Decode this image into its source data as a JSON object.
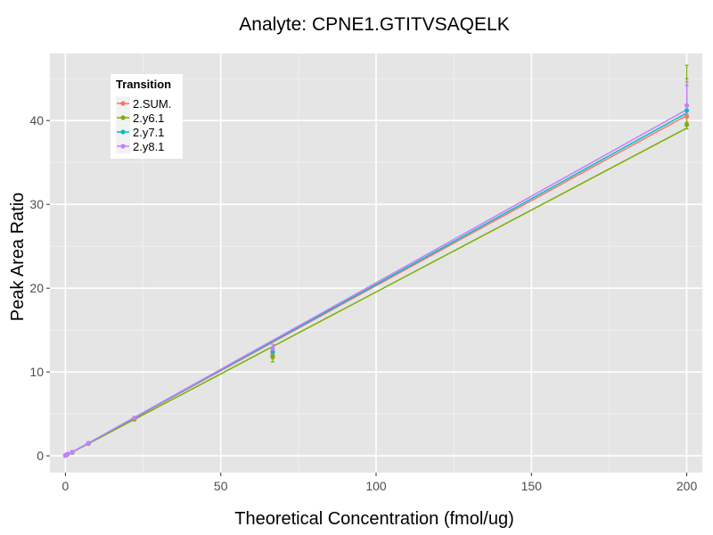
{
  "chart_data": {
    "type": "line",
    "title": "Analyte: CPNE1.GTITVSAQELK",
    "xlabel": "Theoretical Concentration (fmol/ug)",
    "ylabel": "Peak Area Ratio",
    "xlim": [
      -5,
      205
    ],
    "ylim": [
      -2,
      48
    ],
    "x_ticks": [
      0,
      50,
      100,
      150,
      200
    ],
    "x_tick_labels": [
      "0",
      "50",
      "100",
      "150",
      "200"
    ],
    "y_ticks": [
      0,
      10,
      20,
      30,
      40
    ],
    "y_tick_labels": [
      "0",
      "10",
      "20",
      "30",
      "40"
    ],
    "grid": true,
    "legend": {
      "title": "Transition",
      "position": "top-left"
    },
    "series": [
      {
        "name": "2.SUM.",
        "color": "#F8766D",
        "fit": {
          "x": [
            0,
            200
          ],
          "y": [
            0.0,
            40.6
          ]
        },
        "points": [
          {
            "x": 0,
            "y": 0.05
          },
          {
            "x": 0.25,
            "y": 0.1
          },
          {
            "x": 0.7,
            "y": 0.2
          },
          {
            "x": 2.2,
            "y": 0.45
          },
          {
            "x": 7.4,
            "y": 1.5
          },
          {
            "x": 22.2,
            "y": 4.45
          },
          {
            "x": 66.7,
            "y": 12.0,
            "err": [
              11.6,
              12.6
            ]
          },
          {
            "x": 200,
            "y": 40.5,
            "err": [
              39.8,
              45.0
            ]
          }
        ]
      },
      {
        "name": "2.y6.1",
        "color": "#7CAE00",
        "fit": {
          "x": [
            0,
            200
          ],
          "y": [
            0.0,
            39.1
          ]
        },
        "points": [
          {
            "x": 0,
            "y": 0.05
          },
          {
            "x": 0.25,
            "y": 0.1
          },
          {
            "x": 0.7,
            "y": 0.2
          },
          {
            "x": 2.2,
            "y": 0.4
          },
          {
            "x": 7.4,
            "y": 1.45
          },
          {
            "x": 22.2,
            "y": 4.35
          },
          {
            "x": 66.7,
            "y": 11.8,
            "err": [
              11.2,
              12.4
            ]
          },
          {
            "x": 200,
            "y": 39.5,
            "err": [
              39.0,
              46.6
            ]
          }
        ]
      },
      {
        "name": "2.y7.1",
        "color": "#00BFC4",
        "fit": {
          "x": [
            0,
            200
          ],
          "y": [
            0.0,
            40.9
          ]
        },
        "points": [
          {
            "x": 0,
            "y": 0.05
          },
          {
            "x": 0.25,
            "y": 0.1
          },
          {
            "x": 0.7,
            "y": 0.2
          },
          {
            "x": 2.2,
            "y": 0.45
          },
          {
            "x": 7.4,
            "y": 1.5
          },
          {
            "x": 22.2,
            "y": 4.5
          },
          {
            "x": 66.7,
            "y": 12.4,
            "err": [
              11.9,
              12.9
            ]
          },
          {
            "x": 200,
            "y": 41.2,
            "err": [
              40.5,
              44.2
            ]
          }
        ]
      },
      {
        "name": "2.y8.1",
        "color": "#C77CFF",
        "fit": {
          "x": [
            0,
            200
          ],
          "y": [
            0.0,
            41.3
          ]
        },
        "points": [
          {
            "x": 0,
            "y": 0.05
          },
          {
            "x": 0.25,
            "y": 0.1
          },
          {
            "x": 0.7,
            "y": 0.2
          },
          {
            "x": 2.2,
            "y": 0.45
          },
          {
            "x": 7.4,
            "y": 1.5
          },
          {
            "x": 22.2,
            "y": 4.5
          },
          {
            "x": 66.7,
            "y": 12.8,
            "err": [
              12.3,
              13.3
            ]
          },
          {
            "x": 200,
            "y": 41.8,
            "err": [
              40.8,
              44.6
            ]
          }
        ]
      }
    ]
  }
}
